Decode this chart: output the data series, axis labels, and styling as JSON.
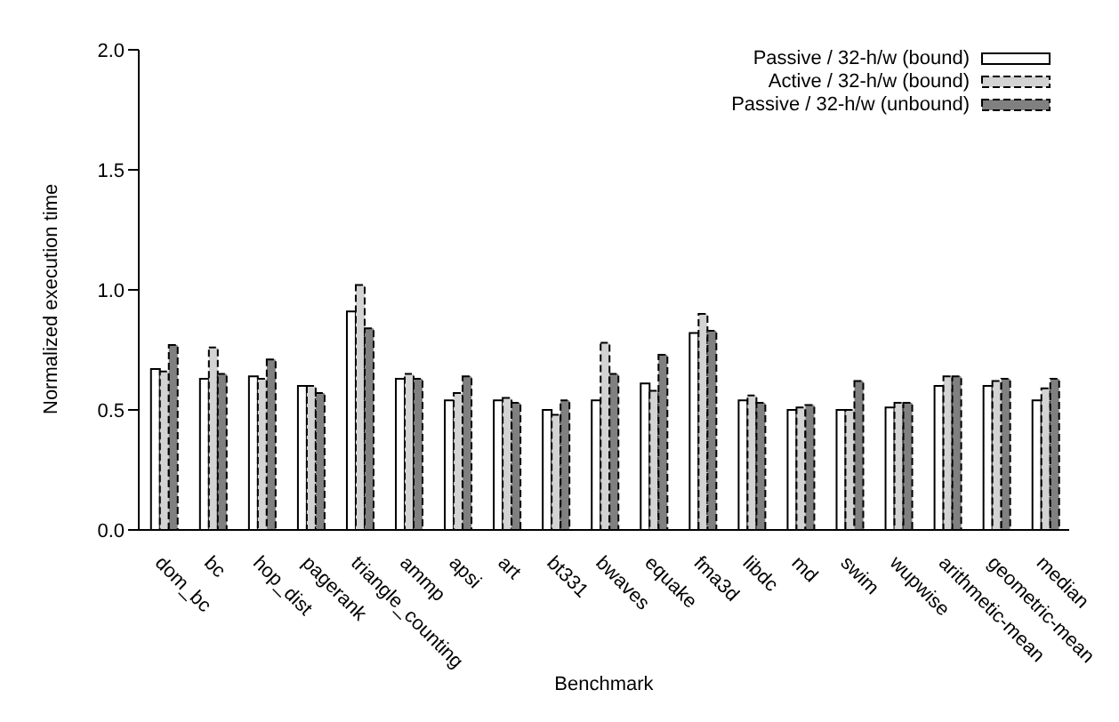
{
  "chart_data": {
    "type": "bar",
    "xlabel": "Benchmark",
    "ylabel": "Normalized execution time",
    "categories": [
      "dom_bc",
      "bc",
      "hop_dist",
      "pagerank",
      "triangle_counting",
      "ammp",
      "apsi",
      "art",
      "bt331",
      "bwaves",
      "equake",
      "fma3d",
      "libdc",
      "md",
      "swim",
      "wupwise",
      "arithmetic-mean",
      "geometric-mean",
      "median"
    ],
    "series": [
      {
        "name": "Passive / 32-h/w (bound)",
        "color": "#ffffff",
        "line_style": "solid",
        "values": [
          0.67,
          0.63,
          0.64,
          0.6,
          0.91,
          0.63,
          0.54,
          0.54,
          0.5,
          0.54,
          0.61,
          0.82,
          0.54,
          0.5,
          0.5,
          0.51,
          0.6,
          0.6,
          0.54
        ]
      },
      {
        "name": "Active / 32-h/w (bound)",
        "color": "#d3d3d3",
        "line_style": "dashed",
        "values": [
          0.66,
          0.76,
          0.63,
          0.6,
          1.02,
          0.65,
          0.57,
          0.55,
          0.48,
          0.78,
          0.58,
          0.9,
          0.56,
          0.51,
          0.5,
          0.53,
          0.64,
          0.62,
          0.59
        ]
      },
      {
        "name": "Passive / 32-h/w (unbound)",
        "color": "#808080",
        "line_style": "dashed",
        "values": [
          0.77,
          0.65,
          0.71,
          0.57,
          0.84,
          0.63,
          0.64,
          0.53,
          0.54,
          0.65,
          0.73,
          0.83,
          0.53,
          0.52,
          0.62,
          0.53,
          0.64,
          0.63,
          0.63
        ]
      }
    ],
    "ylim": [
      0,
      2
    ],
    "yticks": [
      {
        "value": 0,
        "label": "0.0"
      },
      {
        "value": 0.5,
        "label": "0.5"
      },
      {
        "value": 1,
        "label": "1.0"
      },
      {
        "value": 1.5,
        "label": "1.5"
      },
      {
        "value": 2,
        "label": "2.0"
      }
    ],
    "grid": false,
    "legend": "top right"
  }
}
